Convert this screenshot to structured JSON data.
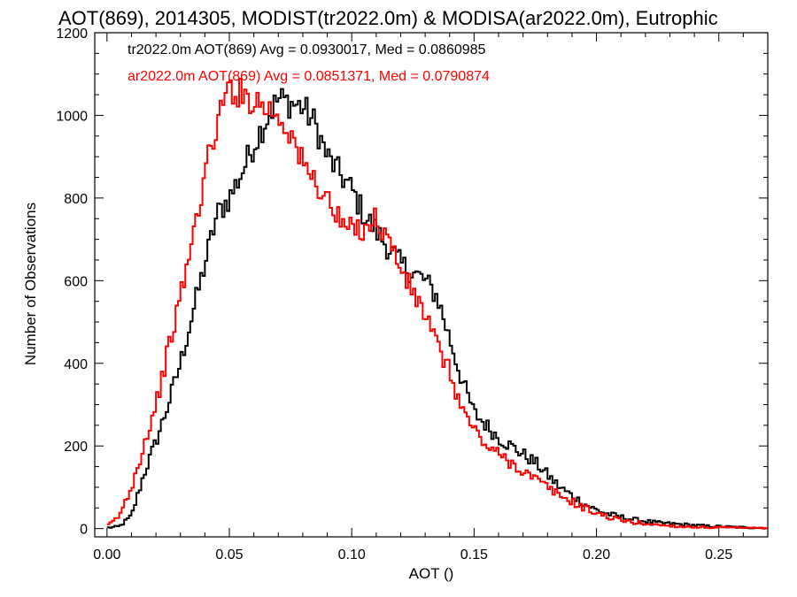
{
  "chart_data": {
    "type": "histogram",
    "title": "AOT(869), 2014305, MODIST(tr2022.0m) & MODISA(ar2022.0m), Eutrophic",
    "xlabel": "AOT ()",
    "ylabel": "Number of Observations",
    "xlim": [
      -0.005,
      0.27
    ],
    "ylim": [
      -20,
      1200
    ],
    "xticks": [
      0.0,
      0.05,
      0.1,
      0.15,
      0.2,
      0.25
    ],
    "xtick_labels": [
      "0.00",
      "0.05",
      "0.10",
      "0.15",
      "0.20",
      "0.25"
    ],
    "yticks": [
      0,
      200,
      400,
      600,
      800,
      1000,
      1200
    ],
    "ytick_labels": [
      "0",
      "200",
      "400",
      "600",
      "800",
      "1000",
      "1200"
    ],
    "bin_width": 0.001,
    "series": [
      {
        "name": "tr2022.0m",
        "color": "#000000",
        "legend": "tr2022.0m AOT(869) Avg = 0.0930017, Med = 0.0860985",
        "x": [
          0.0,
          0.005,
          0.01,
          0.015,
          0.02,
          0.025,
          0.03,
          0.035,
          0.04,
          0.045,
          0.05,
          0.055,
          0.06,
          0.065,
          0.07,
          0.075,
          0.08,
          0.085,
          0.09,
          0.095,
          0.1,
          0.105,
          0.11,
          0.115,
          0.12,
          0.125,
          0.13,
          0.135,
          0.14,
          0.145,
          0.15,
          0.155,
          0.16,
          0.165,
          0.17,
          0.175,
          0.18,
          0.185,
          0.19,
          0.195,
          0.2,
          0.205,
          0.21,
          0.215,
          0.22,
          0.225,
          0.23,
          0.235,
          0.24,
          0.245,
          0.25,
          0.255,
          0.26,
          0.265
        ],
        "values": [
          2,
          5,
          30,
          130,
          210,
          300,
          400,
          520,
          640,
          760,
          800,
          860,
          930,
          990,
          1040,
          1030,
          1020,
          980,
          900,
          860,
          820,
          760,
          720,
          680,
          640,
          620,
          600,
          560,
          460,
          360,
          280,
          250,
          220,
          200,
          180,
          160,
          130,
          100,
          80,
          60,
          45,
          35,
          28,
          22,
          18,
          14,
          12,
          10,
          8,
          6,
          5,
          4,
          3,
          2
        ]
      },
      {
        "name": "ar2022.0m",
        "color": "#ff0000",
        "legend": "ar2022.0m AOT(869) Avg = 0.0851371, Med = 0.0790874",
        "x": [
          0.0,
          0.005,
          0.01,
          0.015,
          0.02,
          0.025,
          0.03,
          0.035,
          0.04,
          0.045,
          0.05,
          0.055,
          0.06,
          0.065,
          0.07,
          0.075,
          0.08,
          0.085,
          0.09,
          0.095,
          0.1,
          0.105,
          0.11,
          0.115,
          0.12,
          0.125,
          0.13,
          0.135,
          0.14,
          0.145,
          0.15,
          0.155,
          0.16,
          0.165,
          0.17,
          0.175,
          0.18,
          0.185,
          0.19,
          0.195,
          0.2,
          0.205,
          0.21,
          0.215,
          0.22,
          0.225,
          0.23,
          0.235,
          0.24,
          0.245,
          0.25,
          0.255,
          0.26,
          0.265
        ],
        "values": [
          5,
          30,
          100,
          200,
          300,
          430,
          560,
          700,
          860,
          980,
          1070,
          1050,
          1040,
          1020,
          1000,
          960,
          880,
          840,
          800,
          740,
          720,
          730,
          750,
          700,
          630,
          570,
          520,
          440,
          380,
          290,
          240,
          200,
          180,
          160,
          140,
          120,
          100,
          80,
          65,
          50,
          38,
          28,
          20,
          15,
          12,
          9,
          7,
          5,
          4,
          3,
          3,
          2,
          2,
          1
        ]
      }
    ]
  }
}
